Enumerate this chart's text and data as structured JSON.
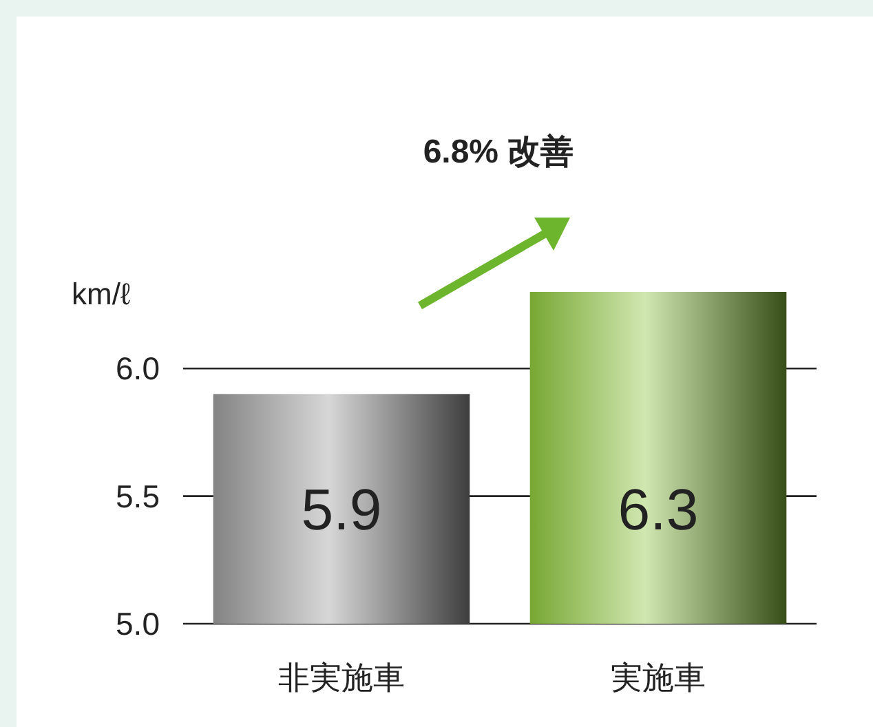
{
  "chart_data": {
    "type": "bar",
    "categories": [
      "非実施車",
      "実施車"
    ],
    "values": [
      5.9,
      6.3
    ],
    "colors": [
      "#9a9a9a",
      "#8cc43c"
    ],
    "ylim": [
      5.0,
      6.3
    ],
    "yticks": [
      {
        "value": 5.0,
        "label": "5.0"
      },
      {
        "value": 5.5,
        "label": "5.5"
      },
      {
        "value": 6.0,
        "label": "6.0"
      }
    ],
    "ylabel": "km/ℓ",
    "annotations": [
      "6.8% 改善"
    ],
    "data_labels": true,
    "grid": "y"
  }
}
